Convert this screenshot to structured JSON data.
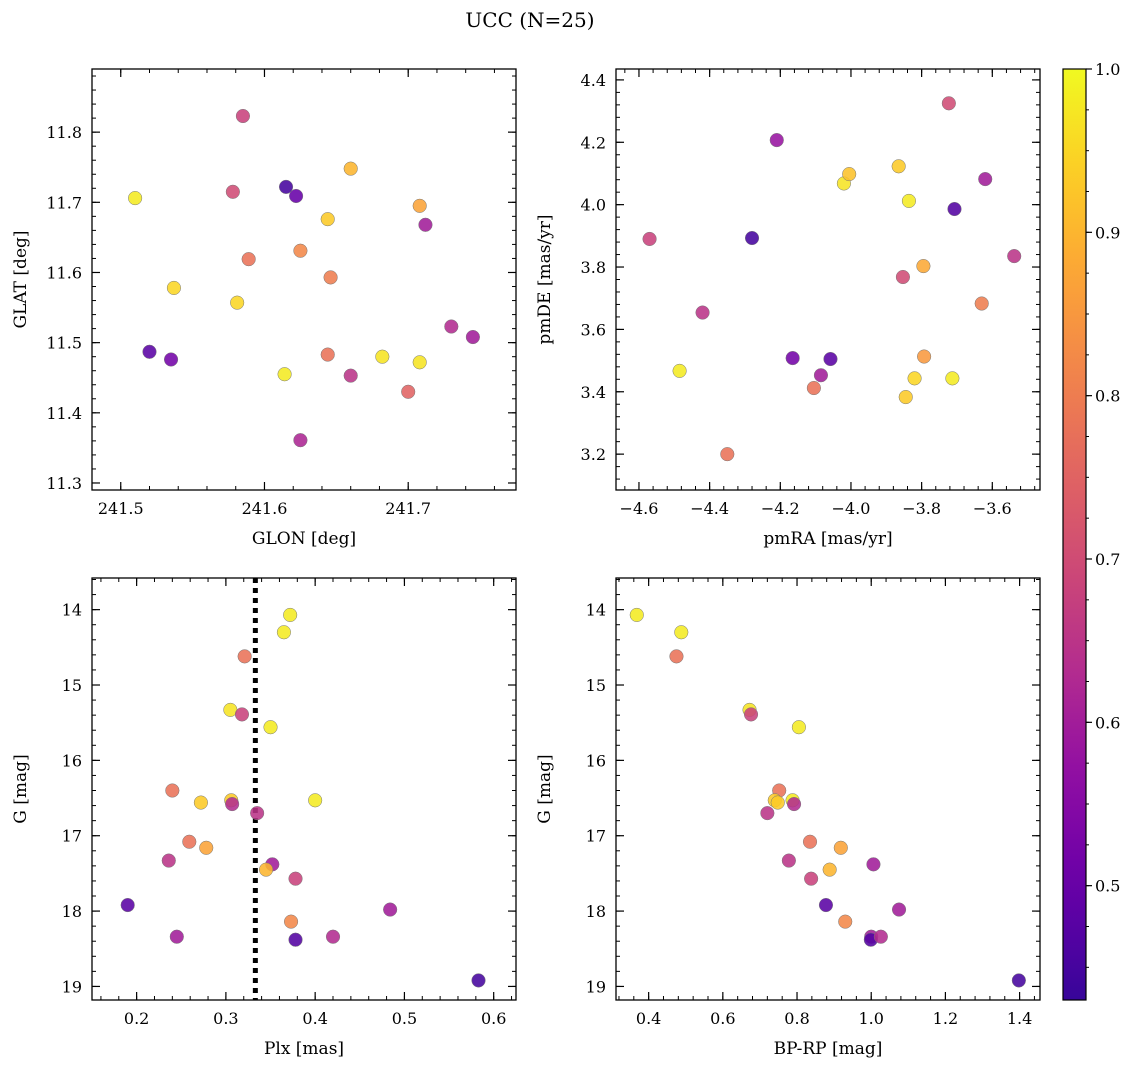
{
  "figure": {
    "title": "UCC (N=25)",
    "colorbar": {
      "range": [
        0.43,
        1.0
      ],
      "ticks": [
        "0.5",
        "0.6",
        "0.7",
        "0.8",
        "0.9",
        "1.0"
      ],
      "tick_values": [
        0.5,
        0.6,
        0.7,
        0.8,
        0.9,
        1.0
      ],
      "colormap": "plasma"
    }
  },
  "chart_data": [
    {
      "type": "scatter",
      "panel": "top-left",
      "xlabel": "GLON [deg]",
      "ylabel": "GLAT [deg]",
      "xlim": [
        241.48,
        241.775
      ],
      "ylim": [
        11.29,
        11.89
      ],
      "x_ticks": [
        241.5,
        241.6,
        241.7
      ],
      "x_tick_labels": [
        "241.5",
        "241.6",
        "241.7"
      ],
      "y_ticks": [
        11.3,
        11.4,
        11.5,
        11.6,
        11.7,
        11.8
      ],
      "y_tick_labels": [
        "11.3",
        "11.4",
        "11.5",
        "11.6",
        "11.7",
        "11.8"
      ],
      "points": [
        {
          "x": 241.51,
          "y": 11.706,
          "c": 0.98
        },
        {
          "x": 241.52,
          "y": 11.487,
          "c": 0.48
        },
        {
          "x": 241.535,
          "y": 11.476,
          "c": 0.52
        },
        {
          "x": 241.537,
          "y": 11.578,
          "c": 0.95
        },
        {
          "x": 241.578,
          "y": 11.715,
          "c": 0.7
        },
        {
          "x": 241.581,
          "y": 11.557,
          "c": 0.95
        },
        {
          "x": 241.585,
          "y": 11.823,
          "c": 0.68
        },
        {
          "x": 241.589,
          "y": 11.619,
          "c": 0.78
        },
        {
          "x": 241.614,
          "y": 11.455,
          "c": 0.98
        },
        {
          "x": 241.615,
          "y": 11.722,
          "c": 0.45
        },
        {
          "x": 241.622,
          "y": 11.709,
          "c": 0.5
        },
        {
          "x": 241.625,
          "y": 11.631,
          "c": 0.82
        },
        {
          "x": 241.625,
          "y": 11.361,
          "c": 0.62
        },
        {
          "x": 241.644,
          "y": 11.676,
          "c": 0.93
        },
        {
          "x": 241.644,
          "y": 11.483,
          "c": 0.78
        },
        {
          "x": 241.646,
          "y": 11.593,
          "c": 0.8
        },
        {
          "x": 241.66,
          "y": 11.748,
          "c": 0.9
        },
        {
          "x": 241.66,
          "y": 11.453,
          "c": 0.65
        },
        {
          "x": 241.682,
          "y": 11.48,
          "c": 0.97
        },
        {
          "x": 241.7,
          "y": 11.43,
          "c": 0.75
        },
        {
          "x": 241.708,
          "y": 11.695,
          "c": 0.87
        },
        {
          "x": 241.708,
          "y": 11.472,
          "c": 0.97
        },
        {
          "x": 241.712,
          "y": 11.668,
          "c": 0.6
        },
        {
          "x": 241.73,
          "y": 11.523,
          "c": 0.63
        },
        {
          "x": 241.745,
          "y": 11.508,
          "c": 0.6
        }
      ]
    },
    {
      "type": "scatter",
      "panel": "top-right",
      "xlabel": "pmRA [mas/yr]",
      "ylabel": "pmDE [mas/yr]",
      "xlim": [
        -4.665,
        -3.465
      ],
      "ylim": [
        3.085,
        4.435
      ],
      "x_ticks": [
        -4.6,
        -4.4,
        -4.2,
        -4.0,
        -3.8,
        -3.6
      ],
      "x_tick_labels": [
        "−4.6",
        "−4.4",
        "−4.2",
        "−4.0",
        "−3.8",
        "−3.6"
      ],
      "y_ticks": [
        3.2,
        3.4,
        3.6,
        3.8,
        4.0,
        4.2,
        4.4
      ],
      "y_tick_labels": [
        "3.2",
        "3.4",
        "3.6",
        "3.8",
        "4.0",
        "4.2",
        "4.4"
      ],
      "points": [
        {
          "x": -4.57,
          "y": 3.89,
          "c": 0.68
        },
        {
          "x": -4.485,
          "y": 3.467,
          "c": 0.98
        },
        {
          "x": -4.42,
          "y": 3.654,
          "c": 0.65
        },
        {
          "x": -4.35,
          "y": 3.2,
          "c": 0.78
        },
        {
          "x": -4.28,
          "y": 3.893,
          "c": 0.45
        },
        {
          "x": -4.21,
          "y": 4.207,
          "c": 0.58
        },
        {
          "x": -4.165,
          "y": 3.508,
          "c": 0.52
        },
        {
          "x": -4.105,
          "y": 3.412,
          "c": 0.78
        },
        {
          "x": -4.085,
          "y": 3.453,
          "c": 0.6
        },
        {
          "x": -4.058,
          "y": 3.505,
          "c": 0.48
        },
        {
          "x": -4.02,
          "y": 4.068,
          "c": 0.97
        },
        {
          "x": -4.005,
          "y": 4.098,
          "c": 0.92
        },
        {
          "x": -3.865,
          "y": 4.123,
          "c": 0.93
        },
        {
          "x": -3.853,
          "y": 3.768,
          "c": 0.7
        },
        {
          "x": -3.845,
          "y": 3.383,
          "c": 0.93
        },
        {
          "x": -3.836,
          "y": 4.012,
          "c": 0.98
        },
        {
          "x": -3.82,
          "y": 3.443,
          "c": 0.95
        },
        {
          "x": -3.795,
          "y": 3.803,
          "c": 0.88
        },
        {
          "x": -3.793,
          "y": 3.513,
          "c": 0.85
        },
        {
          "x": -3.723,
          "y": 4.325,
          "c": 0.7
        },
        {
          "x": -3.713,
          "y": 3.443,
          "c": 0.98
        },
        {
          "x": -3.707,
          "y": 3.986,
          "c": 0.47
        },
        {
          "x": -3.63,
          "y": 3.683,
          "c": 0.8
        },
        {
          "x": -3.62,
          "y": 4.082,
          "c": 0.6
        },
        {
          "x": -3.538,
          "y": 3.835,
          "c": 0.65
        }
      ]
    },
    {
      "type": "scatter",
      "panel": "bottom-left",
      "xlabel": "Plx [mas]",
      "ylabel": "G [mag]",
      "xlim": [
        0.15,
        0.625
      ],
      "ylim": [
        13.58,
        19.18
      ],
      "y_inverted": true,
      "x_ticks": [
        0.2,
        0.3,
        0.4,
        0.5,
        0.6
      ],
      "x_tick_labels": [
        "0.2",
        "0.3",
        "0.4",
        "0.5",
        "0.6"
      ],
      "y_ticks": [
        14,
        15,
        16,
        17,
        18,
        19
      ],
      "y_tick_labels": [
        "14",
        "15",
        "16",
        "17",
        "18",
        "19"
      ],
      "vline": {
        "x": 0.333,
        "style": "dotted",
        "color": "#000000"
      },
      "points": [
        {
          "x": 0.372,
          "y": 14.07,
          "c": 0.98
        },
        {
          "x": 0.365,
          "y": 14.3,
          "c": 0.98
        },
        {
          "x": 0.321,
          "y": 14.62,
          "c": 0.78
        },
        {
          "x": 0.305,
          "y": 15.33,
          "c": 0.97
        },
        {
          "x": 0.318,
          "y": 15.39,
          "c": 0.68
        },
        {
          "x": 0.35,
          "y": 15.56,
          "c": 0.98
        },
        {
          "x": 0.24,
          "y": 16.4,
          "c": 0.78
        },
        {
          "x": 0.272,
          "y": 16.56,
          "c": 0.93
        },
        {
          "x": 0.306,
          "y": 16.53,
          "c": 0.93
        },
        {
          "x": 0.307,
          "y": 16.58,
          "c": 0.63
        },
        {
          "x": 0.335,
          "y": 16.7,
          "c": 0.65
        },
        {
          "x": 0.4,
          "y": 16.53,
          "c": 0.98
        },
        {
          "x": 0.259,
          "y": 17.08,
          "c": 0.78
        },
        {
          "x": 0.278,
          "y": 17.16,
          "c": 0.87
        },
        {
          "x": 0.236,
          "y": 17.33,
          "c": 0.65
        },
        {
          "x": 0.352,
          "y": 17.38,
          "c": 0.6
        },
        {
          "x": 0.345,
          "y": 17.45,
          "c": 0.9
        },
        {
          "x": 0.378,
          "y": 17.57,
          "c": 0.68
        },
        {
          "x": 0.19,
          "y": 17.92,
          "c": 0.48
        },
        {
          "x": 0.484,
          "y": 17.98,
          "c": 0.6
        },
        {
          "x": 0.373,
          "y": 18.14,
          "c": 0.82
        },
        {
          "x": 0.245,
          "y": 18.34,
          "c": 0.6
        },
        {
          "x": 0.378,
          "y": 18.38,
          "c": 0.47
        },
        {
          "x": 0.42,
          "y": 18.34,
          "c": 0.63
        },
        {
          "x": 0.583,
          "y": 18.92,
          "c": 0.45
        }
      ]
    },
    {
      "type": "scatter",
      "panel": "bottom-right",
      "xlabel": "BP-RP [mag]",
      "ylabel": "G [mag]",
      "xlim": [
        0.312,
        1.455
      ],
      "ylim": [
        13.58,
        19.18
      ],
      "y_inverted": true,
      "x_ticks": [
        0.4,
        0.6,
        0.8,
        1.0,
        1.2,
        1.4
      ],
      "x_tick_labels": [
        "0.4",
        "0.6",
        "0.8",
        "1.0",
        "1.2",
        "1.4"
      ],
      "y_ticks": [
        14,
        15,
        16,
        17,
        18,
        19
      ],
      "y_tick_labels": [
        "14",
        "15",
        "16",
        "17",
        "18",
        "19"
      ],
      "points": [
        {
          "x": 0.368,
          "y": 14.07,
          "c": 0.98
        },
        {
          "x": 0.488,
          "y": 14.3,
          "c": 0.98
        },
        {
          "x": 0.475,
          "y": 14.62,
          "c": 0.78
        },
        {
          "x": 0.672,
          "y": 15.33,
          "c": 0.97
        },
        {
          "x": 0.676,
          "y": 15.39,
          "c": 0.68
        },
        {
          "x": 0.805,
          "y": 15.56,
          "c": 0.98
        },
        {
          "x": 0.752,
          "y": 16.4,
          "c": 0.78
        },
        {
          "x": 0.74,
          "y": 16.53,
          "c": 0.93
        },
        {
          "x": 0.748,
          "y": 16.56,
          "c": 0.93
        },
        {
          "x": 0.788,
          "y": 16.53,
          "c": 0.98
        },
        {
          "x": 0.792,
          "y": 16.58,
          "c": 0.63
        },
        {
          "x": 0.72,
          "y": 16.7,
          "c": 0.65
        },
        {
          "x": 0.835,
          "y": 17.08,
          "c": 0.78
        },
        {
          "x": 0.918,
          "y": 17.16,
          "c": 0.87
        },
        {
          "x": 0.778,
          "y": 17.33,
          "c": 0.65
        },
        {
          "x": 1.006,
          "y": 17.38,
          "c": 0.6
        },
        {
          "x": 0.888,
          "y": 17.45,
          "c": 0.9
        },
        {
          "x": 0.838,
          "y": 17.57,
          "c": 0.68
        },
        {
          "x": 0.878,
          "y": 17.92,
          "c": 0.48
        },
        {
          "x": 1.075,
          "y": 17.98,
          "c": 0.6
        },
        {
          "x": 0.93,
          "y": 18.14,
          "c": 0.82
        },
        {
          "x": 1.0,
          "y": 18.34,
          "c": 0.6
        },
        {
          "x": 0.999,
          "y": 18.38,
          "c": 0.47
        },
        {
          "x": 1.026,
          "y": 18.34,
          "c": 0.63
        },
        {
          "x": 1.398,
          "y": 18.92,
          "c": 0.45
        }
      ]
    }
  ]
}
